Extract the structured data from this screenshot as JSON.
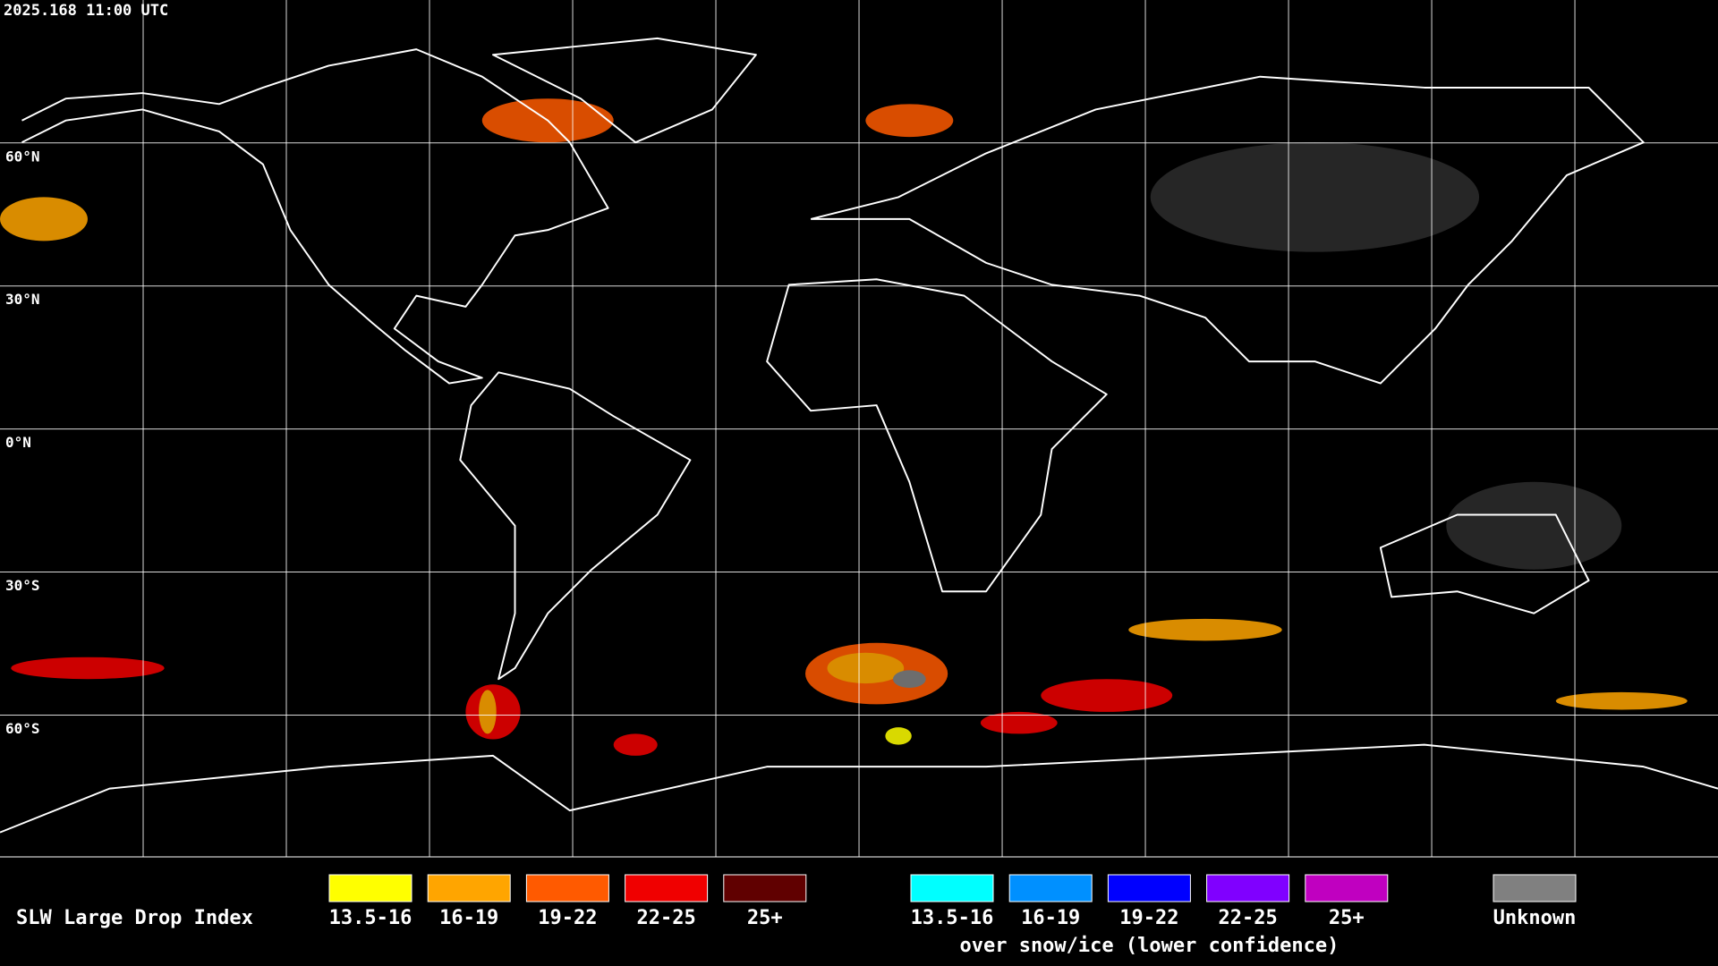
{
  "timestamp": "2025.168 11:00 UTC",
  "map": {
    "lat_labels": [
      "60°N",
      "30°N",
      "0°N",
      "30°S",
      "60°S"
    ]
  },
  "legend": {
    "title": "SLW Large Drop Index",
    "groups": [
      {
        "items": [
          {
            "label": "13.5-16",
            "color": "#ffff00"
          },
          {
            "label": "16-19",
            "color": "#ffa500"
          },
          {
            "label": "19-22",
            "color": "#ff5a00"
          },
          {
            "label": "22-25",
            "color": "#f00000"
          },
          {
            "label": "25+",
            "color": "#600000"
          }
        ]
      },
      {
        "items": [
          {
            "label": "13.5-16",
            "color": "#00ffff"
          },
          {
            "label": "16-19",
            "color": "#0090ff"
          },
          {
            "label": "19-22",
            "color": "#0000ff"
          },
          {
            "label": "22-25",
            "color": "#8000ff"
          },
          {
            "label": "25+",
            "color": "#c000c0"
          }
        ],
        "note": "over snow/ice (lower confidence)"
      }
    ],
    "unknown": {
      "label": "Unknown",
      "color": "#808080"
    }
  }
}
